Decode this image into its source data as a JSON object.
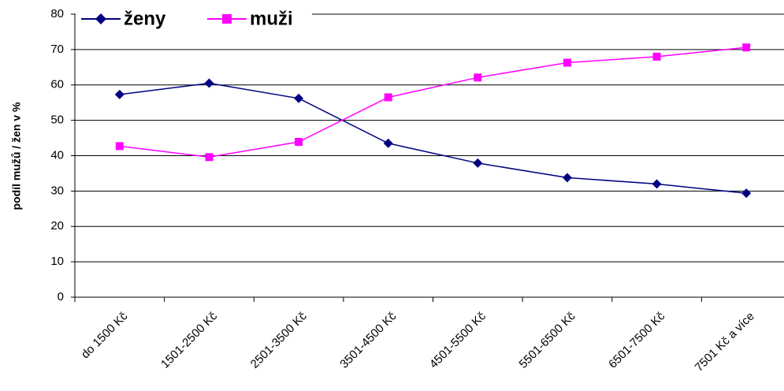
{
  "chart_data": {
    "type": "line",
    "y_label": "podíl mužů / žen v %",
    "categories": [
      "do 1500 Kč",
      "1501-2500 Kč",
      "2501-3500 Kč",
      "3501-4500 Kč",
      "4501-5500 Kč",
      "5501-6500 Kč",
      "6501-7500 Kč",
      "7501 Kč a více"
    ],
    "series": [
      {
        "name": "ženy",
        "color": "#000080",
        "marker": "diamond",
        "values": [
          57.3,
          60.5,
          56.2,
          43.5,
          37.9,
          33.8,
          32.0,
          29.4
        ]
      },
      {
        "name": "muži",
        "color": "#ff00ff",
        "marker": "square",
        "values": [
          42.7,
          39.6,
          43.9,
          56.5,
          62.1,
          66.3,
          68.0,
          70.6
        ]
      }
    ],
    "ylim": [
      0,
      80
    ],
    "yticks": [
      0,
      10,
      20,
      30,
      40,
      50,
      60,
      70,
      80
    ],
    "grid": true,
    "legend": "top"
  }
}
